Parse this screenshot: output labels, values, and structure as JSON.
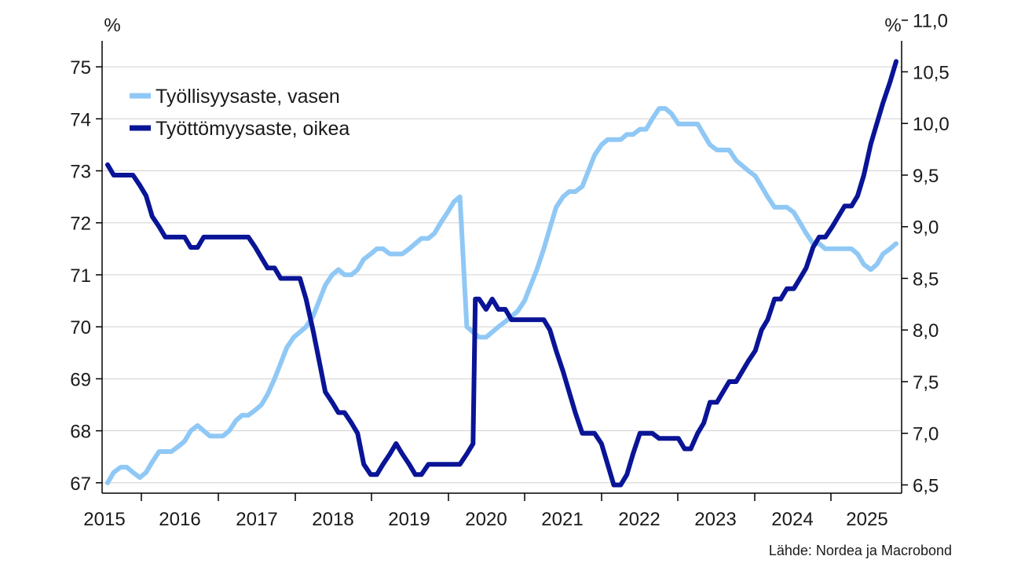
{
  "chart_data": {
    "type": "line",
    "left_unit": "%",
    "right_unit": "%",
    "source": "Lähde: Nordea ja Macrobond",
    "x_tick_labels": [
      "2015",
      "2016",
      "2017",
      "2018",
      "2019",
      "2020",
      "2021",
      "2022",
      "2023",
      "2024",
      "2025"
    ],
    "x_range": [
      2015.0,
      2025.75
    ],
    "left_axis": {
      "range": [
        66.8,
        75.5
      ],
      "ticks": [
        67,
        68,
        69,
        70,
        71,
        72,
        73,
        74,
        75
      ],
      "tick_labels": [
        "67",
        "68",
        "69",
        "70",
        "71",
        "72",
        "73",
        "74",
        "75"
      ]
    },
    "right_axis": {
      "range": [
        6.42,
        10.8
      ],
      "ticks": [
        6.5,
        7.0,
        7.5,
        8.0,
        8.5,
        9.0,
        9.5,
        10.0,
        10.5,
        11.0
      ],
      "tick_labels": [
        "6,5",
        "7,0",
        "7,5",
        "8,0",
        "8,5",
        "9,0",
        "9,5",
        "10,0",
        "10,5",
        "11,0"
      ]
    },
    "grid": true,
    "legend_position": "top-left",
    "colors": {
      "employment": "#90c8f5",
      "unemployment": "#0a1496",
      "axis": "#000000",
      "grid": "#d0d0d0"
    },
    "series": [
      {
        "name": "Työllisyysaste, vasen",
        "axis": "left",
        "points": [
          [
            2015.0,
            67.0
          ],
          [
            2015.08,
            67.2
          ],
          [
            2015.17,
            67.3
          ],
          [
            2015.25,
            67.3
          ],
          [
            2015.33,
            67.2
          ],
          [
            2015.42,
            67.1
          ],
          [
            2015.5,
            67.2
          ],
          [
            2015.58,
            67.4
          ],
          [
            2015.67,
            67.6
          ],
          [
            2015.75,
            67.6
          ],
          [
            2015.83,
            67.6
          ],
          [
            2015.92,
            67.7
          ],
          [
            2016.0,
            67.8
          ],
          [
            2016.08,
            68.0
          ],
          [
            2016.17,
            68.1
          ],
          [
            2016.25,
            68.0
          ],
          [
            2016.33,
            67.9
          ],
          [
            2016.42,
            67.9
          ],
          [
            2016.5,
            67.9
          ],
          [
            2016.58,
            68.0
          ],
          [
            2016.67,
            68.2
          ],
          [
            2016.75,
            68.3
          ],
          [
            2016.83,
            68.3
          ],
          [
            2016.92,
            68.4
          ],
          [
            2017.0,
            68.5
          ],
          [
            2017.08,
            68.7
          ],
          [
            2017.17,
            69.0
          ],
          [
            2017.25,
            69.3
          ],
          [
            2017.33,
            69.6
          ],
          [
            2017.42,
            69.8
          ],
          [
            2017.5,
            69.9
          ],
          [
            2017.58,
            70.0
          ],
          [
            2017.67,
            70.2
          ],
          [
            2017.75,
            70.5
          ],
          [
            2017.83,
            70.8
          ],
          [
            2017.92,
            71.0
          ],
          [
            2018.0,
            71.1
          ],
          [
            2018.08,
            71.0
          ],
          [
            2018.17,
            71.0
          ],
          [
            2018.25,
            71.1
          ],
          [
            2018.33,
            71.3
          ],
          [
            2018.42,
            71.4
          ],
          [
            2018.5,
            71.5
          ],
          [
            2018.58,
            71.5
          ],
          [
            2018.67,
            71.4
          ],
          [
            2018.75,
            71.4
          ],
          [
            2018.83,
            71.4
          ],
          [
            2018.92,
            71.5
          ],
          [
            2019.0,
            71.6
          ],
          [
            2019.08,
            71.7
          ],
          [
            2019.17,
            71.7
          ],
          [
            2019.25,
            71.8
          ],
          [
            2019.33,
            72.0
          ],
          [
            2019.42,
            72.2
          ],
          [
            2019.5,
            72.4
          ],
          [
            2019.58,
            72.5
          ],
          [
            2019.67,
            70.0
          ],
          [
            2019.75,
            69.9
          ],
          [
            2019.83,
            69.8
          ],
          [
            2019.92,
            69.8
          ],
          [
            2020.0,
            69.9
          ],
          [
            2020.08,
            70.0
          ],
          [
            2020.17,
            70.1
          ],
          [
            2020.25,
            70.2
          ],
          [
            2020.33,
            70.3
          ],
          [
            2020.42,
            70.5
          ],
          [
            2020.5,
            70.8
          ],
          [
            2020.58,
            71.1
          ],
          [
            2020.67,
            71.5
          ],
          [
            2020.75,
            71.9
          ],
          [
            2020.83,
            72.3
          ],
          [
            2020.92,
            72.5
          ],
          [
            2021.0,
            72.6
          ],
          [
            2021.08,
            72.6
          ],
          [
            2021.17,
            72.7
          ],
          [
            2021.25,
            73.0
          ],
          [
            2021.33,
            73.3
          ],
          [
            2021.42,
            73.5
          ],
          [
            2021.5,
            73.6
          ],
          [
            2021.58,
            73.6
          ],
          [
            2021.67,
            73.6
          ],
          [
            2021.75,
            73.7
          ],
          [
            2021.83,
            73.7
          ],
          [
            2021.92,
            73.8
          ],
          [
            2022.0,
            73.8
          ],
          [
            2022.08,
            74.0
          ],
          [
            2022.17,
            74.2
          ],
          [
            2022.25,
            74.2
          ],
          [
            2022.33,
            74.1
          ],
          [
            2022.42,
            73.9
          ],
          [
            2022.5,
            73.9
          ],
          [
            2022.58,
            73.9
          ],
          [
            2022.67,
            73.9
          ],
          [
            2022.75,
            73.7
          ],
          [
            2022.83,
            73.5
          ],
          [
            2022.92,
            73.4
          ],
          [
            2023.0,
            73.4
          ],
          [
            2023.08,
            73.4
          ],
          [
            2023.17,
            73.2
          ],
          [
            2023.25,
            73.1
          ],
          [
            2023.33,
            73.0
          ],
          [
            2023.42,
            72.9
          ],
          [
            2023.5,
            72.7
          ],
          [
            2023.58,
            72.5
          ],
          [
            2023.67,
            72.3
          ],
          [
            2023.75,
            72.3
          ],
          [
            2023.83,
            72.3
          ],
          [
            2023.92,
            72.2
          ],
          [
            2024.0,
            72.0
          ],
          [
            2024.08,
            71.8
          ],
          [
            2024.17,
            71.6
          ],
          [
            2024.25,
            71.6
          ],
          [
            2024.33,
            71.5
          ],
          [
            2024.42,
            71.5
          ],
          [
            2024.5,
            71.5
          ],
          [
            2024.58,
            71.5
          ],
          [
            2024.67,
            71.5
          ],
          [
            2024.75,
            71.4
          ],
          [
            2024.83,
            71.2
          ],
          [
            2024.92,
            71.1
          ],
          [
            2025.0,
            71.2
          ],
          [
            2025.08,
            71.4
          ],
          [
            2025.17,
            71.5
          ],
          [
            2025.25,
            71.6
          ]
        ]
      },
      {
        "name": "Työttömyysaste, oikea",
        "axis": "right",
        "points": [
          [
            2015.0,
            9.6
          ],
          [
            2015.08,
            9.5
          ],
          [
            2015.17,
            9.5
          ],
          [
            2015.25,
            9.5
          ],
          [
            2015.33,
            9.5
          ],
          [
            2015.42,
            9.4
          ],
          [
            2015.5,
            9.3
          ],
          [
            2015.58,
            9.1
          ],
          [
            2015.67,
            9.0
          ],
          [
            2015.75,
            8.9
          ],
          [
            2015.83,
            8.9
          ],
          [
            2015.92,
            8.9
          ],
          [
            2016.0,
            8.9
          ],
          [
            2016.08,
            8.8
          ],
          [
            2016.17,
            8.8
          ],
          [
            2016.25,
            8.9
          ],
          [
            2016.33,
            8.9
          ],
          [
            2016.42,
            8.9
          ],
          [
            2016.5,
            8.9
          ],
          [
            2016.58,
            8.9
          ],
          [
            2016.67,
            8.9
          ],
          [
            2016.75,
            8.9
          ],
          [
            2016.83,
            8.9
          ],
          [
            2016.92,
            8.8
          ],
          [
            2017.0,
            8.7
          ],
          [
            2017.08,
            8.6
          ],
          [
            2017.17,
            8.6
          ],
          [
            2017.25,
            8.5
          ],
          [
            2017.33,
            8.5
          ],
          [
            2017.42,
            8.5
          ],
          [
            2017.5,
            8.5
          ],
          [
            2017.58,
            8.3
          ],
          [
            2017.67,
            8.0
          ],
          [
            2017.75,
            7.7
          ],
          [
            2017.83,
            7.4
          ],
          [
            2017.92,
            7.3
          ],
          [
            2018.0,
            7.2
          ],
          [
            2018.08,
            7.2
          ],
          [
            2018.17,
            7.1
          ],
          [
            2018.25,
            7.0
          ],
          [
            2018.33,
            6.7
          ],
          [
            2018.42,
            6.6
          ],
          [
            2018.5,
            6.6
          ],
          [
            2018.58,
            6.7
          ],
          [
            2018.67,
            6.8
          ],
          [
            2018.75,
            6.9
          ],
          [
            2018.83,
            6.8
          ],
          [
            2018.92,
            6.7
          ],
          [
            2019.0,
            6.6
          ],
          [
            2019.08,
            6.6
          ],
          [
            2019.17,
            6.7
          ],
          [
            2019.25,
            6.7
          ],
          [
            2019.33,
            6.7
          ],
          [
            2019.42,
            6.7
          ],
          [
            2019.5,
            6.7
          ],
          [
            2019.58,
            6.7
          ],
          [
            2019.67,
            6.8
          ],
          [
            2019.75,
            6.9
          ],
          [
            2019.78,
            8.3
          ],
          [
            2019.83,
            8.3
          ],
          [
            2019.92,
            8.2
          ],
          [
            2020.0,
            8.3
          ],
          [
            2020.08,
            8.2
          ],
          [
            2020.17,
            8.2
          ],
          [
            2020.25,
            8.1
          ],
          [
            2020.33,
            8.1
          ],
          [
            2020.42,
            8.1
          ],
          [
            2020.5,
            8.1
          ],
          [
            2020.58,
            8.1
          ],
          [
            2020.67,
            8.1
          ],
          [
            2020.75,
            8.0
          ],
          [
            2020.83,
            7.8
          ],
          [
            2020.92,
            7.6
          ],
          [
            2021.0,
            7.4
          ],
          [
            2021.08,
            7.2
          ],
          [
            2021.17,
            7.0
          ],
          [
            2021.25,
            7.0
          ],
          [
            2021.33,
            7.0
          ],
          [
            2021.42,
            6.9
          ],
          [
            2021.5,
            6.7
          ],
          [
            2021.58,
            6.5
          ],
          [
            2021.67,
            6.5
          ],
          [
            2021.75,
            6.6
          ],
          [
            2021.83,
            6.8
          ],
          [
            2021.92,
            7.0
          ],
          [
            2022.0,
            7.0
          ],
          [
            2022.08,
            7.0
          ],
          [
            2022.17,
            6.95
          ],
          [
            2022.25,
            6.95
          ],
          [
            2022.33,
            6.95
          ],
          [
            2022.42,
            6.95
          ],
          [
            2022.5,
            6.85
          ],
          [
            2022.58,
            6.85
          ],
          [
            2022.67,
            7.0
          ],
          [
            2022.75,
            7.1
          ],
          [
            2022.83,
            7.3
          ],
          [
            2022.92,
            7.3
          ],
          [
            2023.0,
            7.4
          ],
          [
            2023.08,
            7.5
          ],
          [
            2023.17,
            7.5
          ],
          [
            2023.25,
            7.6
          ],
          [
            2023.33,
            7.7
          ],
          [
            2023.42,
            7.8
          ],
          [
            2023.5,
            8.0
          ],
          [
            2023.58,
            8.1
          ],
          [
            2023.67,
            8.3
          ],
          [
            2023.75,
            8.3
          ],
          [
            2023.83,
            8.4
          ],
          [
            2023.92,
            8.4
          ],
          [
            2024.0,
            8.5
          ],
          [
            2024.08,
            8.6
          ],
          [
            2024.17,
            8.8
          ],
          [
            2024.25,
            8.9
          ],
          [
            2024.33,
            8.9
          ],
          [
            2024.42,
            9.0
          ],
          [
            2024.5,
            9.1
          ],
          [
            2024.58,
            9.2
          ],
          [
            2024.67,
            9.2
          ],
          [
            2024.75,
            9.3
          ],
          [
            2024.83,
            9.5
          ],
          [
            2024.92,
            9.8
          ],
          [
            2025.0,
            10.0
          ],
          [
            2025.08,
            10.2
          ],
          [
            2025.17,
            10.4
          ],
          [
            2025.25,
            10.6
          ]
        ]
      }
    ]
  }
}
